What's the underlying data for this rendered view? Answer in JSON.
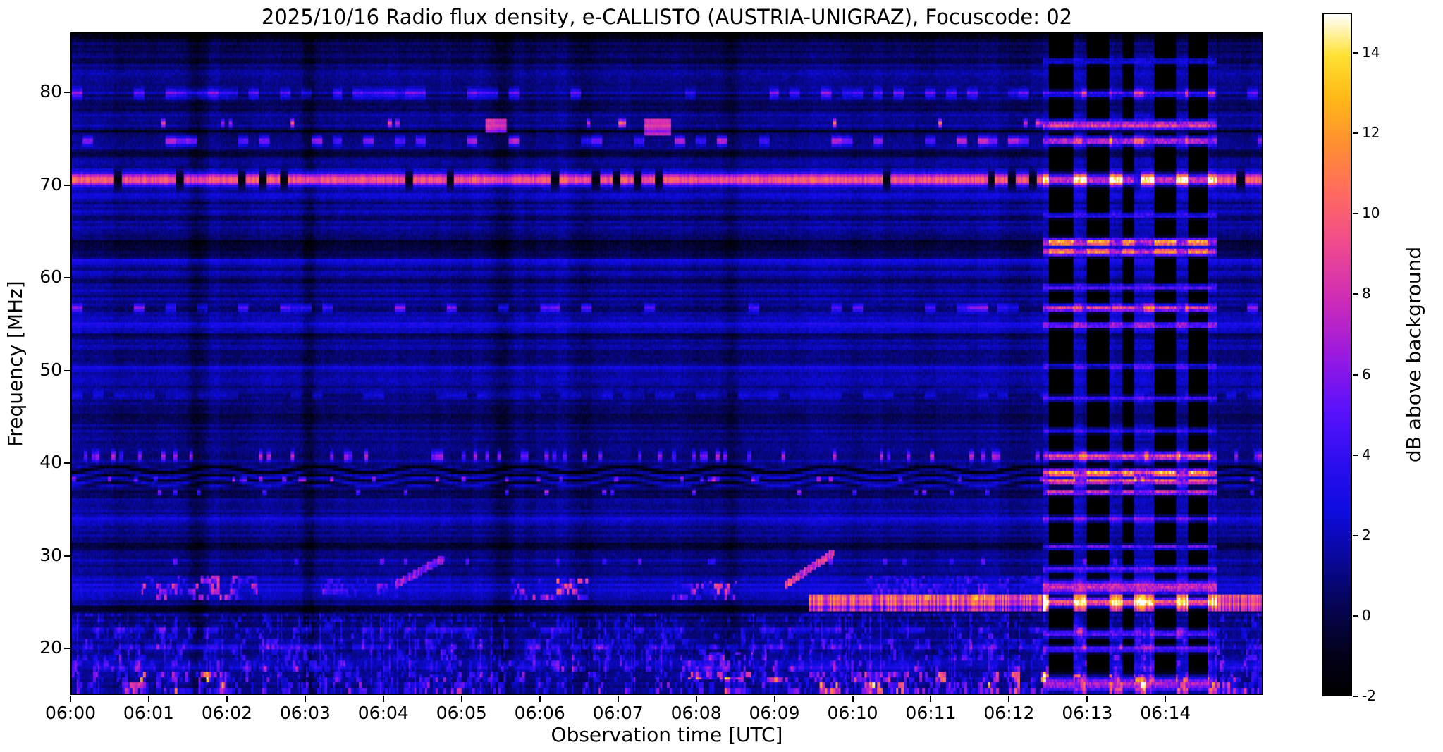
{
  "chart_data": {
    "type": "heatmap",
    "title": "2025/10/16  Radio flux density, e-CALLISTO (AUSTRIA-UNIGRAZ), Focuscode: 02",
    "xlabel": "Observation time [UTC]",
    "ylabel": "Frequency [MHz]",
    "colorbar_label": "dB above background",
    "x_tick_labels": [
      "06:00",
      "06:01",
      "06:02",
      "06:03",
      "06:04",
      "06:05",
      "06:06",
      "06:07",
      "06:08",
      "06:09",
      "06:10",
      "06:11",
      "06:12",
      "06:13",
      "06:14"
    ],
    "x_tick_minutes": [
      0,
      1,
      2,
      3,
      4,
      5,
      6,
      7,
      8,
      9,
      10,
      11,
      12,
      13,
      14
    ],
    "time_span_minutes": [
      0,
      15.25
    ],
    "freq_range_mhz": [
      15.0,
      86.5
    ],
    "y_ticks_mhz": [
      20,
      30,
      40,
      50,
      60,
      70,
      80
    ],
    "value_range_db": [
      -2,
      15
    ],
    "colorbar_ticks_db": [
      -2,
      0,
      2,
      4,
      6,
      8,
      10,
      12,
      14
    ],
    "background_db": 1.2,
    "grid": false,
    "colormap_stops": [
      [
        0.0,
        0,
        0,
        0
      ],
      [
        0.06,
        3,
        2,
        28
      ],
      [
        0.13,
        6,
        5,
        84
      ],
      [
        0.2,
        9,
        8,
        154
      ],
      [
        0.27,
        14,
        12,
        224
      ],
      [
        0.34,
        44,
        14,
        240
      ],
      [
        0.42,
        92,
        18,
        252
      ],
      [
        0.5,
        155,
        26,
        224
      ],
      [
        0.58,
        207,
        44,
        184
      ],
      [
        0.66,
        239,
        74,
        144
      ],
      [
        0.74,
        255,
        108,
        94
      ],
      [
        0.81,
        255,
        144,
        50
      ],
      [
        0.88,
        255,
        187,
        22
      ],
      [
        0.94,
        255,
        226,
        52
      ],
      [
        1.0,
        255,
        255,
        255
      ]
    ],
    "bands": [
      {
        "freq": 86.2,
        "width": 0.7,
        "db": -2.0,
        "mode": "dark"
      },
      {
        "freq": 84.2,
        "width": 1.4,
        "db": -0.7,
        "mode": "dark"
      },
      {
        "freq": 80.0,
        "width": 0.8,
        "db": 3.5,
        "mode": "dashes",
        "duty": 0.45
      },
      {
        "freq": 78.8,
        "width": 1.1,
        "db": -1.2,
        "mode": "dark"
      },
      {
        "freq": 76.8,
        "width": 0.6,
        "db": 6.5,
        "mode": "dots",
        "duty": 0.05
      },
      {
        "freq": 75.9,
        "width": 0.5,
        "db": -1.4,
        "mode": "dark"
      },
      {
        "freq": 74.9,
        "width": 0.7,
        "db": 5.5,
        "mode": "dashes",
        "duty": 0.3
      },
      {
        "freq": 73.6,
        "width": 1.0,
        "db": -1.3,
        "mode": "dark"
      },
      {
        "freq": 70.7,
        "width": 1.1,
        "db": 8.5,
        "mode": "gapped"
      },
      {
        "freq": 68.9,
        "width": 0.5,
        "db": 1.3,
        "mode": "steady"
      },
      {
        "freq": 67.3,
        "width": 0.4,
        "db": 1.5,
        "mode": "steady"
      },
      {
        "freq": 63.7,
        "width": 1.2,
        "db": -2.2,
        "mode": "dark"
      },
      {
        "freq": 61.8,
        "width": 0.5,
        "db": 1.2,
        "mode": "steady"
      },
      {
        "freq": 59.8,
        "width": 0.4,
        "db": -1.0,
        "mode": "dark"
      },
      {
        "freq": 56.8,
        "width": 0.6,
        "db": 4.5,
        "mode": "dashes",
        "duty": 0.25
      },
      {
        "freq": 54.9,
        "width": 0.9,
        "db": 1.8,
        "mode": "steady"
      },
      {
        "freq": 53.8,
        "width": 0.4,
        "db": -1.2,
        "mode": "dark"
      },
      {
        "freq": 50.3,
        "width": 0.4,
        "db": 1.3,
        "mode": "steady"
      },
      {
        "freq": 47.3,
        "width": 0.5,
        "db": 1.8,
        "mode": "dashes",
        "duty": 0.5
      },
      {
        "freq": 44.8,
        "width": 1.2,
        "db": -0.8,
        "mode": "dark"
      },
      {
        "freq": 40.7,
        "width": 0.8,
        "db": 4.5,
        "mode": "dots",
        "duty": 0.18
      },
      {
        "freq": 38.6,
        "width": 2.4,
        "db": 0,
        "mode": "wavy",
        "amp": 1.5
      },
      {
        "freq": 38.2,
        "width": 0.4,
        "db": 5.0,
        "mode": "dots",
        "duty": 0.1
      },
      {
        "freq": 36.8,
        "width": 0.5,
        "db": -1.6,
        "mode": "dark"
      },
      {
        "freq": 36.8,
        "width": 0.4,
        "db": 5.5,
        "mode": "dots",
        "duty": 0.07
      },
      {
        "freq": 33.9,
        "width": 0.4,
        "db": 1.4,
        "mode": "steady"
      },
      {
        "freq": 31.0,
        "width": 0.7,
        "db": -1.9,
        "mode": "dark"
      },
      {
        "freq": 29.3,
        "width": 0.5,
        "db": 3.0,
        "mode": "dots",
        "duty": 0.07
      },
      {
        "freq": 26.6,
        "width": 1.8,
        "db": 1.3,
        "mode": "steady"
      },
      {
        "freq": 24.1,
        "width": 0.7,
        "db": -2.3,
        "mode": "dark"
      },
      {
        "freq": 21.9,
        "width": 0.6,
        "db": 1.8,
        "mode": "dashes",
        "duty": 0.35
      },
      {
        "freq": 20.0,
        "width": 0.8,
        "db": 2.0,
        "mode": "dashes",
        "duty": 0.5
      },
      {
        "freq": 17.8,
        "width": 0.6,
        "db": 1.5,
        "mode": "dashes",
        "duty": 0.4
      }
    ],
    "events": [
      {
        "t": [
          0.65,
          1.95
        ],
        "f": [
          14.8,
          17.3
        ],
        "db": 6.5,
        "style": "noisy"
      },
      {
        "t": [
          0.9,
          2.35
        ],
        "f": [
          25.7,
          27.8
        ],
        "db": 5.0,
        "style": "noisy"
      },
      {
        "t": [
          3.2,
          4.15
        ],
        "f": [
          25.9,
          27.3
        ],
        "db": 3.2,
        "style": "noisy"
      },
      {
        "t": [
          4.15,
          4.75
        ],
        "f": [
          26.8,
          29.6
        ],
        "db": 4.5,
        "style": "drift"
      },
      {
        "t": [
          4.3,
          5.1
        ],
        "f": [
          14.8,
          16.8
        ],
        "db": 3.5,
        "style": "noisy"
      },
      {
        "t": [
          5.3,
          5.55
        ],
        "f": [
          76.3,
          77.1
        ],
        "db": 7.5,
        "style": "solid"
      },
      {
        "t": [
          5.65,
          6.6
        ],
        "f": [
          25.7,
          27.3
        ],
        "db": 6.5,
        "style": "noisy"
      },
      {
        "t": [
          7.35,
          7.65
        ],
        "f": [
          75.9,
          77.2
        ],
        "db": 7.0,
        "style": "solid"
      },
      {
        "t": [
          7.7,
          8.5
        ],
        "f": [
          25.7,
          27.2
        ],
        "db": 5.0,
        "style": "noisy"
      },
      {
        "t": [
          7.9,
          8.7
        ],
        "f": [
          16.8,
          19.2
        ],
        "db": 5.5,
        "style": "noisy"
      },
      {
        "t": [
          8.3,
          9.3
        ],
        "f": [
          14.8,
          16.5
        ],
        "db": 5.5,
        "style": "noisy"
      },
      {
        "t": [
          9.15,
          9.75
        ],
        "f": [
          26.8,
          30.2
        ],
        "db": 6.5,
        "style": "drift"
      },
      {
        "t": [
          9.45,
          12.45
        ],
        "f": [
          24.35,
          25.7
        ],
        "db": 8.5,
        "style": "flicker"
      },
      {
        "t": [
          10.2,
          12.45
        ],
        "f": [
          25.7,
          27.6
        ],
        "db": 2.5,
        "style": "noisy"
      },
      {
        "t": [
          9.5,
          12.45
        ],
        "f": [
          14.8,
          17.2
        ],
        "db": 6.5,
        "style": "noisy"
      },
      {
        "t": [
          12.45,
          15.25
        ],
        "f": [
          24.35,
          25.7
        ],
        "db": 9.0,
        "style": "flicker"
      },
      {
        "t": [
          12.45,
          15.25
        ],
        "f": [
          14.8,
          16.9
        ],
        "db": 6.0,
        "style": "noisy"
      }
    ],
    "dark_columns_minutes": [
      1.62,
      3.05,
      5.5,
      6.55,
      8.45
    ],
    "calibration": {
      "span_minutes": [
        12.45,
        14.68
      ],
      "dark_bars_minutes": [
        [
          12.52,
          12.84
        ],
        [
          13.0,
          13.3
        ],
        [
          13.46,
          13.62
        ],
        [
          13.86,
          14.16
        ],
        [
          14.3,
          14.56
        ]
      ],
      "bright_rows": [
        {
          "freq": 83.5,
          "width": 0.5,
          "db": 5
        },
        {
          "freq": 80.0,
          "width": 0.6,
          "db": 6
        },
        {
          "freq": 76.6,
          "width": 0.8,
          "db": 11
        },
        {
          "freq": 74.9,
          "width": 0.7,
          "db": 10
        },
        {
          "freq": 70.7,
          "width": 1.0,
          "db": 10
        },
        {
          "freq": 66.8,
          "width": 0.5,
          "db": 6
        },
        {
          "freq": 63.9,
          "width": 0.7,
          "db": 15
        },
        {
          "freq": 62.9,
          "width": 0.7,
          "db": 14
        },
        {
          "freq": 59.0,
          "width": 0.5,
          "db": 7
        },
        {
          "freq": 56.8,
          "width": 0.6,
          "db": 11
        },
        {
          "freq": 54.9,
          "width": 0.5,
          "db": 8
        },
        {
          "freq": 50.5,
          "width": 0.5,
          "db": 5
        },
        {
          "freq": 47.0,
          "width": 0.5,
          "db": 6
        },
        {
          "freq": 43.5,
          "width": 0.5,
          "db": 5
        },
        {
          "freq": 40.7,
          "width": 0.7,
          "db": 12
        },
        {
          "freq": 38.9,
          "width": 0.7,
          "db": 15
        },
        {
          "freq": 38.0,
          "width": 0.6,
          "db": 13
        },
        {
          "freq": 36.8,
          "width": 0.5,
          "db": 11
        },
        {
          "freq": 33.9,
          "width": 0.5,
          "db": 6
        },
        {
          "freq": 30.9,
          "width": 0.5,
          "db": 8
        },
        {
          "freq": 28.5,
          "width": 0.6,
          "db": 7
        },
        {
          "freq": 26.5,
          "width": 1.2,
          "db": 10
        },
        {
          "freq": 24.9,
          "width": 0.8,
          "db": 12
        },
        {
          "freq": 21.5,
          "width": 0.7,
          "db": 7
        },
        {
          "freq": 19.8,
          "width": 0.6,
          "db": 7
        },
        {
          "freq": 16.0,
          "width": 1.4,
          "db": 9
        }
      ]
    }
  }
}
